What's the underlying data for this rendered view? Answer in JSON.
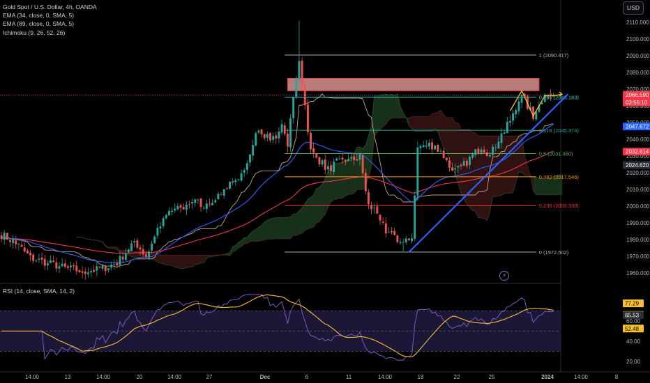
{
  "legend": {
    "symbol": "Gold Spot / U.S. Dollar, 4h, OANDA",
    "ema1": "EMA (34, close, 0, SMA, 5)",
    "ema2": "EMA (89, close, 0, SMA, 5)",
    "ichimoku": "Ichimoku (9, 26, 52, 26)"
  },
  "rsi_legend": "RSI (14, close, SMA, 14, 2)",
  "currency_button": "USD",
  "alert_icon": "lightning-icon",
  "colors": {
    "background": "#000000",
    "up": "#26a69a",
    "down": "#ef5350",
    "ema34": "#2962ff",
    "ema89": "#f23645",
    "kumo_green": "#1b3a1e",
    "kumo_red": "#3a1515",
    "span_a": "#4caf50",
    "span_b": "#b2443b",
    "lagging": "#c9a77d",
    "fib_1": "#b0b0b0",
    "fib_0786": "#26c6da",
    "fib_0618": "#26a69a",
    "fib_05": "#4caf50",
    "fib_0382": "#ff9800",
    "fib_0236": "#f23645",
    "fib_0": "#b0b0b0",
    "zone_fill": "#f7a5a5",
    "zone_border": "#e53935",
    "trendline": "#2962ff",
    "pattern": "#fbc02d",
    "rsi_line": "#7e57c2",
    "rsi_ma": "#fbc02d",
    "rsi_band": "#1f1a3d",
    "bolt_ring": "#7a6db8"
  },
  "chart_data": {
    "type": "candlestick",
    "title": "Gold Spot / U.S. Dollar, 4h, OANDA",
    "y_axis": {
      "ticks": [
        "1960.000",
        "1970.000",
        "1980.000",
        "1990.000",
        "2000.000",
        "2010.000",
        "2020.000",
        "2030.000",
        "2040.000",
        "2050.000",
        "2060.000",
        "2070.000",
        "2080.000",
        "2090.000",
        "2100.000",
        "2110.000"
      ],
      "range": [
        1955,
        2115
      ]
    },
    "x_axis": {
      "ticks": [
        "14:00",
        "13",
        "14:00",
        "20",
        "14:00",
        "27",
        "Dec",
        "6",
        "11",
        "14:00",
        "18",
        "22",
        "25",
        "2024",
        "14:00",
        "8"
      ],
      "bar_count": 192,
      "bars_in_view": 194
    },
    "price_tags": [
      {
        "label": "2066.590",
        "sub": "03:56:10",
        "value": 2066.59,
        "color": "#f23645"
      },
      {
        "label": "2047.672",
        "value": 2047.672,
        "color": "#2962ff"
      },
      {
        "label": "2032.614",
        "value": 2032.614,
        "color": "#f23645"
      },
      {
        "label": "2024.620",
        "value": 2024.62,
        "color": "#2a2e39"
      }
    ],
    "fib_levels": [
      {
        "label": "1 (2090.417)",
        "value": 2090.417,
        "color": "#b0b0b0"
      },
      {
        "label": "0.786 (2065.183)",
        "value": 2065.183,
        "color": "#26c6da"
      },
      {
        "label": "0.618 (2045.374)",
        "value": 2045.374,
        "color": "#26a69a"
      },
      {
        "label": "0.5 (2031.460)",
        "value": 2031.46,
        "color": "#4caf50"
      },
      {
        "label": "0.382 (2017.546)",
        "value": 2017.546,
        "color": "#ff9800"
      },
      {
        "label": "0.236 (2000.330)",
        "value": 2000.33,
        "color": "#f23645"
      },
      {
        "label": "0 (1972.502)",
        "value": 1972.502,
        "color": "#b0b0b0"
      }
    ],
    "fib_start_bar": 98,
    "fib_end_bar": 185,
    "resistance_zone": {
      "from_bar": 99,
      "to_bar": 186,
      "high": 2076.5,
      "low": 2069.0
    },
    "current_price_line": 2066.59,
    "trendline": {
      "from": [
        141,
        1972.5
      ],
      "to": [
        196,
        2067.0
      ]
    },
    "pattern_path": [
      [
        176,
        2057
      ],
      [
        180,
        2069
      ],
      [
        184,
        2054
      ],
      [
        188,
        2066
      ],
      [
        191,
        2066
      ],
      [
        194,
        2067
      ]
    ],
    "anchors": [
      {
        "bar": 0,
        "price": 1983
      },
      {
        "bar": 5,
        "price": 1978
      },
      {
        "bar": 10,
        "price": 1969
      },
      {
        "bar": 16,
        "price": 1966
      },
      {
        "bar": 22,
        "price": 1963
      },
      {
        "bar": 28,
        "price": 1961
      },
      {
        "bar": 34,
        "price": 1962
      },
      {
        "bar": 40,
        "price": 1966
      },
      {
        "bar": 46,
        "price": 1979
      },
      {
        "bar": 50,
        "price": 1970
      },
      {
        "bar": 54,
        "price": 1985
      },
      {
        "bar": 58,
        "price": 1997
      },
      {
        "bar": 62,
        "price": 1998
      },
      {
        "bar": 66,
        "price": 2003
      },
      {
        "bar": 70,
        "price": 2001
      },
      {
        "bar": 74,
        "price": 2005
      },
      {
        "bar": 78,
        "price": 2012
      },
      {
        "bar": 82,
        "price": 2014
      },
      {
        "bar": 85,
        "price": 2027
      },
      {
        "bar": 88,
        "price": 2045
      },
      {
        "bar": 91,
        "price": 2042
      },
      {
        "bar": 94,
        "price": 2040
      },
      {
        "bar": 97,
        "price": 2047
      },
      {
        "bar": 99,
        "price": 2038
      },
      {
        "bar": 101,
        "price": 2063
      },
      {
        "bar": 103,
        "price": 2088
      },
      {
        "bar": 105,
        "price": 2060
      },
      {
        "bar": 107,
        "price": 2033
      },
      {
        "bar": 110,
        "price": 2027
      },
      {
        "bar": 113,
        "price": 2022
      },
      {
        "bar": 116,
        "price": 2026
      },
      {
        "bar": 120,
        "price": 2027
      },
      {
        "bar": 124,
        "price": 2029
      },
      {
        "bar": 127,
        "price": 2000
      },
      {
        "bar": 130,
        "price": 1997
      },
      {
        "bar": 133,
        "price": 1983
      },
      {
        "bar": 136,
        "price": 1982
      },
      {
        "bar": 139,
        "price": 1977
      },
      {
        "bar": 142,
        "price": 1981
      },
      {
        "bar": 144,
        "price": 2035
      },
      {
        "bar": 147,
        "price": 2037
      },
      {
        "bar": 150,
        "price": 2036
      },
      {
        "bar": 153,
        "price": 2030
      },
      {
        "bar": 156,
        "price": 2020
      },
      {
        "bar": 159,
        "price": 2023
      },
      {
        "bar": 163,
        "price": 2030
      },
      {
        "bar": 166,
        "price": 2036
      },
      {
        "bar": 169,
        "price": 2030
      },
      {
        "bar": 172,
        "price": 2040
      },
      {
        "bar": 175,
        "price": 2048
      },
      {
        "bar": 178,
        "price": 2058
      },
      {
        "bar": 180,
        "price": 2068
      },
      {
        "bar": 182,
        "price": 2060
      },
      {
        "bar": 184,
        "price": 2054
      },
      {
        "bar": 186,
        "price": 2062
      },
      {
        "bar": 188,
        "price": 2066
      },
      {
        "bar": 191,
        "price": 2066.59
      }
    ],
    "rsi": {
      "axis_ticks": [
        "77.29",
        "65.84",
        "65.53",
        "60.00",
        "52.48",
        "40.00",
        "20.00"
      ],
      "range": [
        18,
        88
      ],
      "band": [
        30,
        70
      ],
      "current_tags": [
        {
          "label": "77.29",
          "value": 77.29,
          "color": "#fbc02d"
        },
        {
          "label": "65.84",
          "value": 65.84,
          "color": "#fbc02d"
        },
        {
          "label": "65.53",
          "value": 65.53,
          "color": "#2a2e39"
        },
        {
          "label": "52.48",
          "value": 52.48,
          "color": "#fbc02d"
        }
      ],
      "dashed_levels": [
        70,
        50,
        30
      ]
    }
  }
}
